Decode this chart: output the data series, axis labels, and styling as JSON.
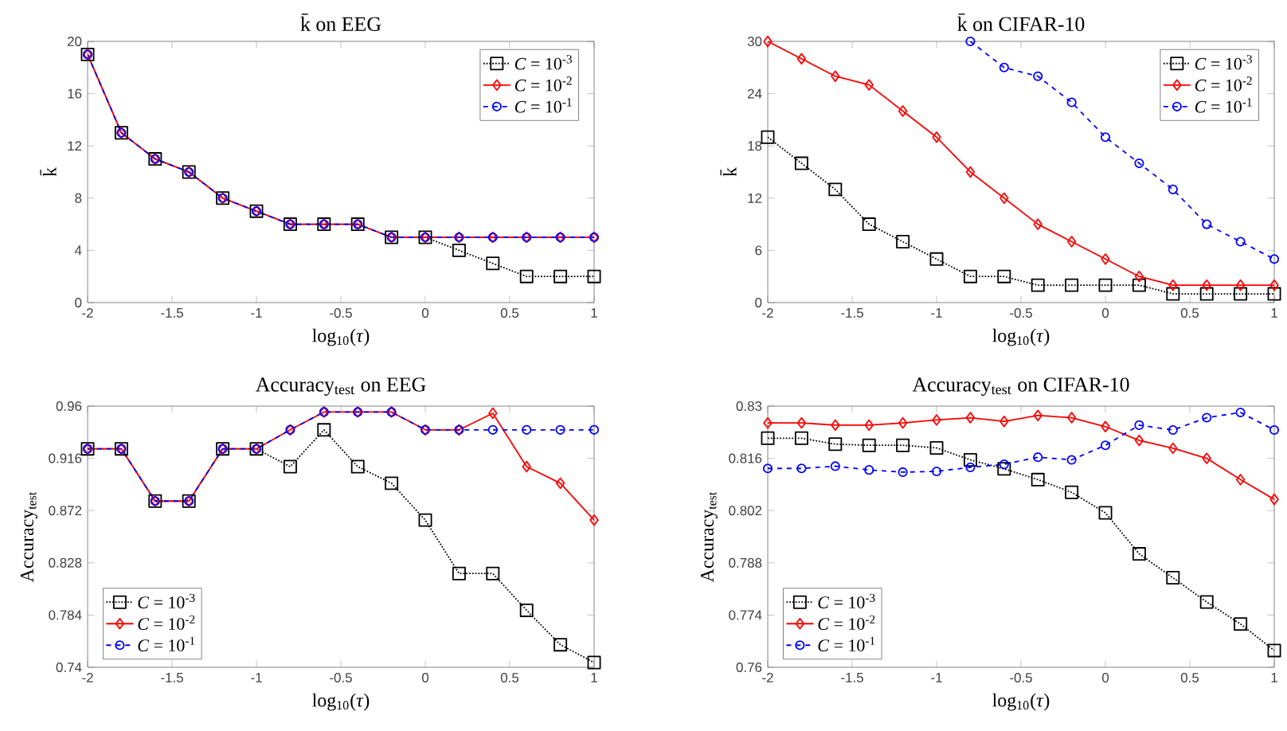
{
  "chart_data": [
    {
      "type": "line",
      "title": "k̄ on EEG",
      "xlabel": "log$_{10}$(*τ*)",
      "ylabel": "k̄",
      "x": [
        -2,
        -1.8,
        -1.6,
        -1.4,
        -1.2,
        -1,
        -0.8,
        -0.6,
        -0.4,
        -0.2,
        0,
        0.2,
        0.4,
        0.6,
        0.8,
        1
      ],
      "xlim": [
        -2,
        1
      ],
      "xticks": [
        -2,
        -1.5,
        -1,
        -0.5,
        0,
        0.5,
        1
      ],
      "ylim": [
        0,
        20
      ],
      "yticks": [
        0,
        4,
        8,
        12,
        16,
        20
      ],
      "legend": "top right",
      "series": [
        {
          "name": "*C* = 10$^{-3}$",
          "color": "#000000",
          "marker": "square",
          "line_style": "dotted",
          "values": [
            19,
            13,
            11,
            10,
            8,
            7,
            6,
            6,
            6,
            5,
            5,
            4,
            3,
            2,
            2,
            2
          ]
        },
        {
          "name": "*C* = 10$^{-2}$",
          "color": "#ff0000",
          "marker": "diamond",
          "line_style": "solid",
          "values": [
            19,
            13,
            11,
            10,
            8,
            7,
            6,
            6,
            6,
            5,
            5,
            5,
            5,
            5,
            5,
            5
          ]
        },
        {
          "name": "*C* = 10$^{-1}$",
          "color": "#0000ff",
          "marker": "circle",
          "line_style": "dashed",
          "values": [
            19,
            13,
            11,
            10,
            8,
            7,
            6,
            6,
            6,
            5,
            5,
            5,
            5,
            5,
            5,
            5
          ]
        }
      ]
    },
    {
      "type": "line",
      "title": "k̄ on CIFAR-10",
      "xlabel": "log$_{10}$(*τ*)",
      "ylabel": "k̄",
      "x": [
        -2,
        -1.8,
        -1.6,
        -1.4,
        -1.2,
        -1,
        -0.8,
        -0.6,
        -0.4,
        -0.2,
        0,
        0.2,
        0.4,
        0.6,
        0.8,
        1
      ],
      "xlim": [
        -2,
        1
      ],
      "xticks": [
        -2,
        -1.5,
        -1,
        -0.5,
        0,
        0.5,
        1
      ],
      "ylim": [
        0,
        30
      ],
      "yticks": [
        0,
        6,
        12,
        18,
        24,
        30
      ],
      "legend": "top right",
      "series": [
        {
          "name": "*C* = 10$^{-3}$",
          "color": "#000000",
          "marker": "square",
          "line_style": "dotted",
          "values": [
            19,
            16,
            13,
            9,
            7,
            5,
            3,
            3,
            2,
            2,
            2,
            2,
            1,
            1,
            1,
            1
          ]
        },
        {
          "name": "*C* = 10$^{-2}$",
          "color": "#ff0000",
          "marker": "diamond",
          "line_style": "solid",
          "values": [
            30,
            28,
            26,
            25,
            22,
            19,
            15,
            12,
            9,
            7,
            5,
            3,
            2,
            2,
            2,
            2
          ]
        },
        {
          "name": "*C* = 10$^{-1}$",
          "color": "#0000ff",
          "marker": "circle",
          "line_style": "dashed",
          "values": [
            null,
            null,
            null,
            null,
            null,
            null,
            30,
            27,
            26,
            23,
            19,
            16,
            13,
            9,
            7,
            5
          ]
        }
      ]
    },
    {
      "type": "line",
      "title": "Accuracy$_{test}$ on EEG",
      "xlabel": "log$_{10}$(*τ*)",
      "ylabel": "Accuracy$_{test}$",
      "x": [
        -2,
        -1.8,
        -1.6,
        -1.4,
        -1.2,
        -1,
        -0.8,
        -0.6,
        -0.4,
        -0.2,
        0,
        0.2,
        0.4,
        0.6,
        0.8,
        1
      ],
      "xlim": [
        -2,
        1
      ],
      "xticks": [
        -2,
        -1.5,
        -1,
        -0.5,
        0,
        0.5,
        1
      ],
      "ylim": [
        0.74,
        0.96
      ],
      "yticks": [
        0.74,
        0.784,
        0.828,
        0.872,
        0.916,
        0.96
      ],
      "legend": "bottom left",
      "series": [
        {
          "name": "*C* = 10$^{-3}$",
          "color": "#000000",
          "marker": "square",
          "line_style": "dotted",
          "values": [
            0.924,
            0.924,
            0.88,
            0.88,
            0.924,
            0.924,
            0.909,
            0.94,
            0.909,
            0.895,
            0.864,
            0.819,
            0.819,
            0.788,
            0.759,
            0.744
          ]
        },
        {
          "name": "*C* = 10$^{-2}$",
          "color": "#ff0000",
          "marker": "diamond",
          "line_style": "solid",
          "values": [
            0.924,
            0.924,
            0.88,
            0.88,
            0.924,
            0.924,
            0.94,
            0.955,
            0.955,
            0.955,
            0.94,
            0.94,
            0.954,
            0.909,
            0.895,
            0.864
          ]
        },
        {
          "name": "*C* = 10$^{-1}$",
          "color": "#0000ff",
          "marker": "circle",
          "line_style": "dashed",
          "values": [
            0.924,
            0.924,
            0.88,
            0.88,
            0.924,
            0.924,
            0.94,
            0.955,
            0.955,
            0.955,
            0.94,
            0.94,
            0.94,
            0.94,
            0.94,
            0.94
          ]
        }
      ]
    },
    {
      "type": "line",
      "title": "Accuracy$_{test}$ on CIFAR-10",
      "xlabel": "log$_{10}$(*τ*)",
      "ylabel": "Accuracy$_{test}$",
      "x": [
        -2,
        -1.8,
        -1.6,
        -1.4,
        -1.2,
        -1,
        -0.8,
        -0.6,
        -0.4,
        -0.2,
        0,
        0.2,
        0.4,
        0.6,
        0.8,
        1
      ],
      "xlim": [
        -2,
        1
      ],
      "xticks": [
        -2,
        -1.5,
        -1,
        -0.5,
        0,
        0.5,
        1
      ],
      "ylim": [
        0.76,
        0.83
      ],
      "yticks": [
        0.76,
        0.774,
        0.788,
        0.802,
        0.816,
        0.83
      ],
      "legend": "bottom left",
      "series": [
        {
          "name": "*C* = 10$^{-3}$",
          "color": "#000000",
          "marker": "square",
          "line_style": "dotted",
          "values": [
            0.8214,
            0.8214,
            0.8198,
            0.8195,
            0.8195,
            0.8188,
            0.8156,
            0.8132,
            0.8103,
            0.8069,
            0.8014,
            0.7904,
            0.784,
            0.7775,
            0.7716,
            0.7645
          ]
        },
        {
          "name": "*C* = 10$^{-2}$",
          "color": "#ff0000",
          "marker": "diamond",
          "line_style": "solid",
          "values": [
            0.8255,
            0.8255,
            0.8249,
            0.8249,
            0.8255,
            0.8263,
            0.8269,
            0.8259,
            0.8275,
            0.8269,
            0.8245,
            0.8208,
            0.8187,
            0.816,
            0.8103,
            0.805
          ]
        },
        {
          "name": "*C* = 10$^{-1}$",
          "color": "#0000ff",
          "marker": "circle",
          "line_style": "dashed",
          "values": [
            0.8133,
            0.8133,
            0.8139,
            0.8129,
            0.8123,
            0.8125,
            0.8136,
            0.8144,
            0.8163,
            0.8156,
            0.8195,
            0.8249,
            0.8236,
            0.8269,
            0.8283,
            0.8236
          ]
        }
      ]
    }
  ]
}
